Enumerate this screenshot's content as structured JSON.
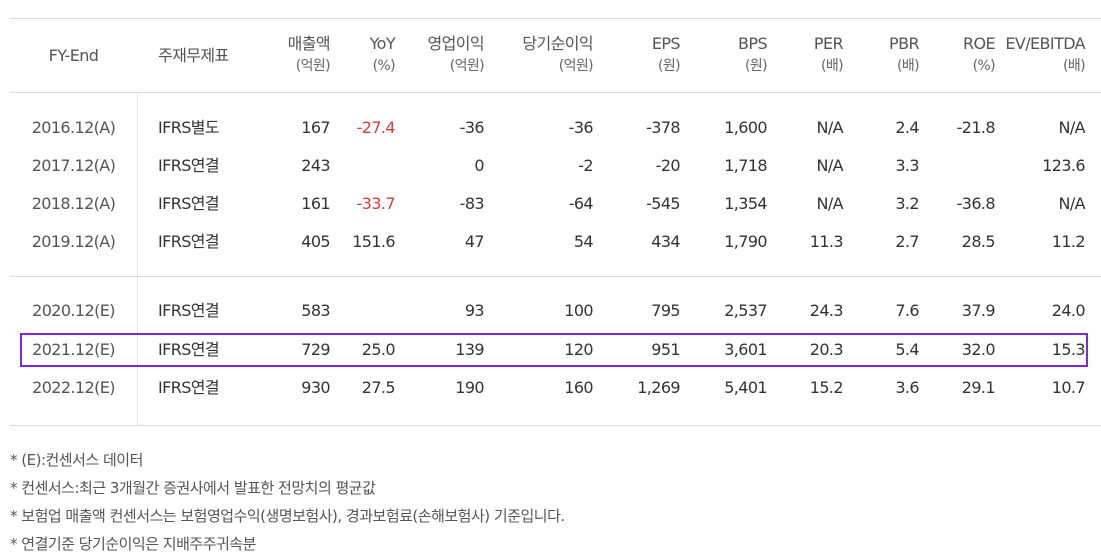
{
  "header": {
    "fy": "FY-End",
    "stmt": "주재무제표",
    "cols": [
      {
        "name": "매출액",
        "unit": "(억원)"
      },
      {
        "name": "YoY",
        "unit": "(%)"
      },
      {
        "name": "영업이익",
        "unit": "(억원)"
      },
      {
        "name": "당기순이익",
        "unit": "(억원)"
      },
      {
        "name": "EPS",
        "unit": "(원)"
      },
      {
        "name": "BPS",
        "unit": "(원)"
      },
      {
        "name": "PER",
        "unit": "(배)"
      },
      {
        "name": "PBR",
        "unit": "(배)"
      },
      {
        "name": "ROE",
        "unit": "(%)"
      },
      {
        "name": "EV/EBITDA",
        "unit": "(배)"
      }
    ]
  },
  "rows": [
    {
      "fy": "2016.12(A)",
      "stmt": "IFRS별도",
      "vals": [
        "167",
        "-27.4",
        "-36",
        "-36",
        "-378",
        "1,600",
        "N/A",
        "2.4",
        "-21.8",
        "N/A"
      ]
    },
    {
      "fy": "2017.12(A)",
      "stmt": "IFRS연결",
      "vals": [
        "243",
        "",
        "0",
        "-2",
        "-20",
        "1,718",
        "N/A",
        "3.3",
        "",
        "123.6"
      ]
    },
    {
      "fy": "2018.12(A)",
      "stmt": "IFRS연결",
      "vals": [
        "161",
        "-33.7",
        "-83",
        "-64",
        "-545",
        "1,354",
        "N/A",
        "3.2",
        "-36.8",
        "N/A"
      ]
    },
    {
      "fy": "2019.12(A)",
      "stmt": "IFRS연결",
      "vals": [
        "405",
        "151.6",
        "47",
        "54",
        "434",
        "1,790",
        "11.3",
        "2.7",
        "28.5",
        "11.2"
      ]
    },
    {
      "fy": "2020.12(E)",
      "stmt": "IFRS연결",
      "vals": [
        "583",
        "",
        "93",
        "100",
        "795",
        "2,537",
        "24.3",
        "7.6",
        "37.9",
        "24.0"
      ]
    },
    {
      "fy": "2021.12(E)",
      "stmt": "IFRS연결",
      "vals": [
        "729",
        "25.0",
        "139",
        "120",
        "951",
        "3,601",
        "20.3",
        "5.4",
        "32.0",
        "15.3"
      ]
    },
    {
      "fy": "2022.12(E)",
      "stmt": "IFRS연결",
      "vals": [
        "930",
        "27.5",
        "190",
        "160",
        "1,269",
        "5,401",
        "15.2",
        "3.6",
        "29.1",
        "10.7"
      ]
    }
  ],
  "highlight_color": "#7b2bd6",
  "negative_yoy_color": "#e03a3a",
  "notes": [
    "* (E):컨센서스 데이터",
    "* 컨센서스:최근 3개월간 증권사에서 발표한 전망치의 평균값",
    "* 보험업 매출액 컨센서스는 보험영업수익(생명보험사), 경과보험료(손해보험사) 기준입니다.",
    "* 연결기준 당기순이익은 지배주주귀속분"
  ]
}
